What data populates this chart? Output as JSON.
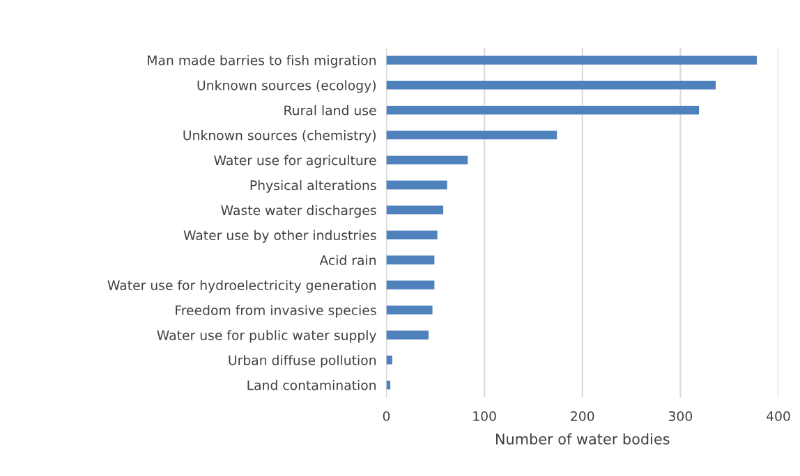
{
  "chart_data": {
    "type": "bar",
    "orientation": "horizontal",
    "xlabel": "Number of water bodies",
    "categories": [
      "Man made barries to fish migration",
      "Unknown sources (ecology)",
      "Rural land use",
      "Unknown sources (chemistry)",
      "Water use for agriculture",
      "Physical alterations",
      "Waste water discharges",
      "Water use by other industries",
      "Acid rain",
      "Water use for hydroelectricity generation",
      "Freedom from invasive species",
      "Water use for public water supply",
      "Urban diffuse pollution",
      "Land contamination"
    ],
    "values": [
      378,
      336,
      319,
      174,
      83,
      62,
      58,
      52,
      49,
      49,
      47,
      43,
      6,
      4
    ],
    "color": "#4f81bd",
    "xlim": [
      0,
      400
    ],
    "xticks": [
      0,
      100,
      200,
      300,
      400
    ],
    "grid": "x"
  }
}
